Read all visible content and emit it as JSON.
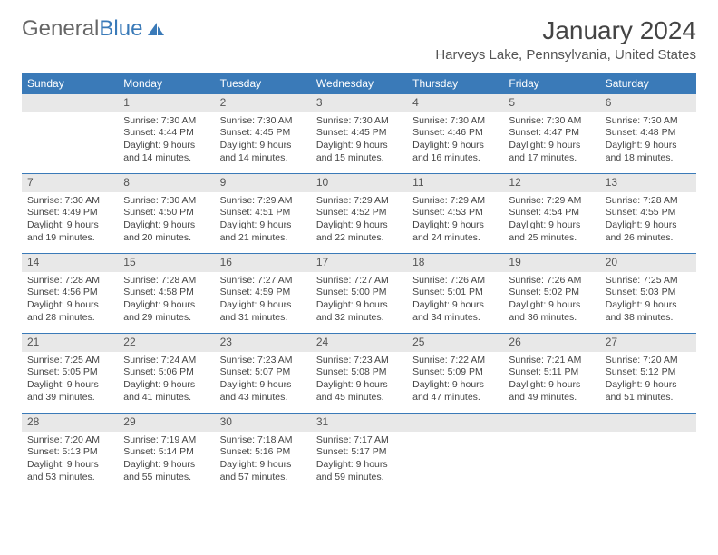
{
  "logo": {
    "text_gray": "General",
    "text_blue": "Blue"
  },
  "header": {
    "month_title": "January 2024",
    "location": "Harveys Lake, Pennsylvania, United States"
  },
  "colors": {
    "header_bg": "#3a7ab8",
    "header_fg": "#ffffff",
    "daynum_bg": "#e8e8e8",
    "border": "#3a7ab8"
  },
  "weekdays": [
    "Sunday",
    "Monday",
    "Tuesday",
    "Wednesday",
    "Thursday",
    "Friday",
    "Saturday"
  ],
  "weeks": [
    [
      null,
      {
        "n": "1",
        "sr": "7:30 AM",
        "ss": "4:44 PM",
        "dl": "9 hours and 14 minutes."
      },
      {
        "n": "2",
        "sr": "7:30 AM",
        "ss": "4:45 PM",
        "dl": "9 hours and 14 minutes."
      },
      {
        "n": "3",
        "sr": "7:30 AM",
        "ss": "4:45 PM",
        "dl": "9 hours and 15 minutes."
      },
      {
        "n": "4",
        "sr": "7:30 AM",
        "ss": "4:46 PM",
        "dl": "9 hours and 16 minutes."
      },
      {
        "n": "5",
        "sr": "7:30 AM",
        "ss": "4:47 PM",
        "dl": "9 hours and 17 minutes."
      },
      {
        "n": "6",
        "sr": "7:30 AM",
        "ss": "4:48 PM",
        "dl": "9 hours and 18 minutes."
      }
    ],
    [
      {
        "n": "7",
        "sr": "7:30 AM",
        "ss": "4:49 PM",
        "dl": "9 hours and 19 minutes."
      },
      {
        "n": "8",
        "sr": "7:30 AM",
        "ss": "4:50 PM",
        "dl": "9 hours and 20 minutes."
      },
      {
        "n": "9",
        "sr": "7:29 AM",
        "ss": "4:51 PM",
        "dl": "9 hours and 21 minutes."
      },
      {
        "n": "10",
        "sr": "7:29 AM",
        "ss": "4:52 PM",
        "dl": "9 hours and 22 minutes."
      },
      {
        "n": "11",
        "sr": "7:29 AM",
        "ss": "4:53 PM",
        "dl": "9 hours and 24 minutes."
      },
      {
        "n": "12",
        "sr": "7:29 AM",
        "ss": "4:54 PM",
        "dl": "9 hours and 25 minutes."
      },
      {
        "n": "13",
        "sr": "7:28 AM",
        "ss": "4:55 PM",
        "dl": "9 hours and 26 minutes."
      }
    ],
    [
      {
        "n": "14",
        "sr": "7:28 AM",
        "ss": "4:56 PM",
        "dl": "9 hours and 28 minutes."
      },
      {
        "n": "15",
        "sr": "7:28 AM",
        "ss": "4:58 PM",
        "dl": "9 hours and 29 minutes."
      },
      {
        "n": "16",
        "sr": "7:27 AM",
        "ss": "4:59 PM",
        "dl": "9 hours and 31 minutes."
      },
      {
        "n": "17",
        "sr": "7:27 AM",
        "ss": "5:00 PM",
        "dl": "9 hours and 32 minutes."
      },
      {
        "n": "18",
        "sr": "7:26 AM",
        "ss": "5:01 PM",
        "dl": "9 hours and 34 minutes."
      },
      {
        "n": "19",
        "sr": "7:26 AM",
        "ss": "5:02 PM",
        "dl": "9 hours and 36 minutes."
      },
      {
        "n": "20",
        "sr": "7:25 AM",
        "ss": "5:03 PM",
        "dl": "9 hours and 38 minutes."
      }
    ],
    [
      {
        "n": "21",
        "sr": "7:25 AM",
        "ss": "5:05 PM",
        "dl": "9 hours and 39 minutes."
      },
      {
        "n": "22",
        "sr": "7:24 AM",
        "ss": "5:06 PM",
        "dl": "9 hours and 41 minutes."
      },
      {
        "n": "23",
        "sr": "7:23 AM",
        "ss": "5:07 PM",
        "dl": "9 hours and 43 minutes."
      },
      {
        "n": "24",
        "sr": "7:23 AM",
        "ss": "5:08 PM",
        "dl": "9 hours and 45 minutes."
      },
      {
        "n": "25",
        "sr": "7:22 AM",
        "ss": "5:09 PM",
        "dl": "9 hours and 47 minutes."
      },
      {
        "n": "26",
        "sr": "7:21 AM",
        "ss": "5:11 PM",
        "dl": "9 hours and 49 minutes."
      },
      {
        "n": "27",
        "sr": "7:20 AM",
        "ss": "5:12 PM",
        "dl": "9 hours and 51 minutes."
      }
    ],
    [
      {
        "n": "28",
        "sr": "7:20 AM",
        "ss": "5:13 PM",
        "dl": "9 hours and 53 minutes."
      },
      {
        "n": "29",
        "sr": "7:19 AM",
        "ss": "5:14 PM",
        "dl": "9 hours and 55 minutes."
      },
      {
        "n": "30",
        "sr": "7:18 AM",
        "ss": "5:16 PM",
        "dl": "9 hours and 57 minutes."
      },
      {
        "n": "31",
        "sr": "7:17 AM",
        "ss": "5:17 PM",
        "dl": "9 hours and 59 minutes."
      },
      null,
      null,
      null
    ]
  ],
  "labels": {
    "sunrise": "Sunrise:",
    "sunset": "Sunset:",
    "daylight": "Daylight:"
  }
}
